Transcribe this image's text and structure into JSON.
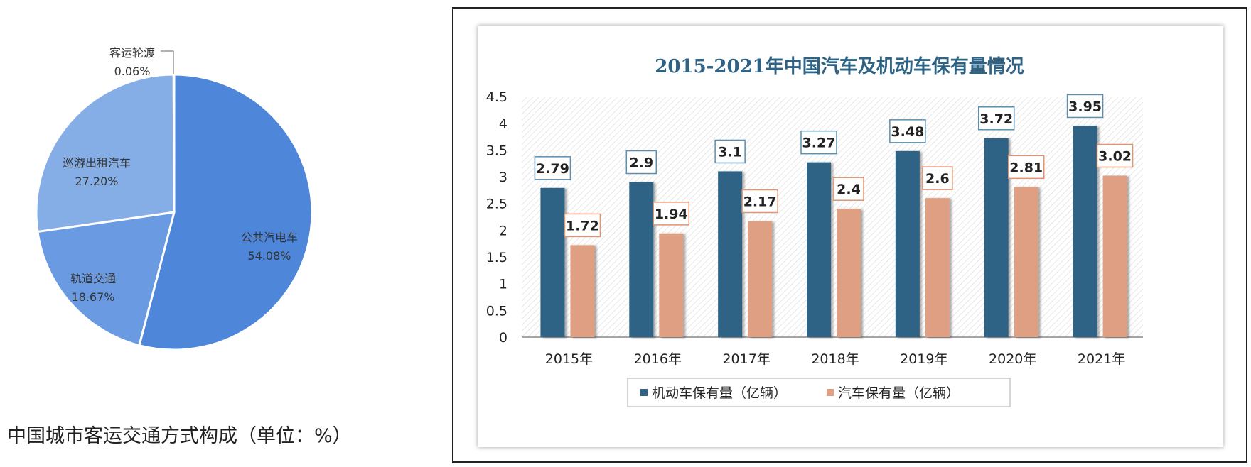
{
  "chart_data": [
    {
      "type": "pie",
      "caption": "中国城市客运交通方式构成（单位：%）",
      "slices": [
        {
          "label": "公共汽电车",
          "value": 54.08,
          "value_text": "54.08%"
        },
        {
          "label": "轨道交通",
          "value": 18.67,
          "value_text": "18.67%"
        },
        {
          "label": "巡游出租汽车",
          "value": 27.2,
          "value_text": "27.20%"
        },
        {
          "label": "客运轮渡",
          "value": 0.06,
          "value_text": "0.06%"
        }
      ],
      "colors": [
        "#4e86d9",
        "#6a9be2",
        "#86aee6",
        "#a4c2ec"
      ]
    },
    {
      "type": "bar",
      "title": "2015-2021年中国汽车及机动车保有量情况",
      "categories": [
        "2015年",
        "2016年",
        "2017年",
        "2018年",
        "2019年",
        "2020年",
        "2021年"
      ],
      "series": [
        {
          "name": "机动车保有量（亿辆）",
          "values": [
            2.79,
            2.9,
            3.1,
            3.27,
            3.48,
            3.72,
            3.95
          ],
          "labels": [
            "2.79",
            "2.9",
            "3.1",
            "3.27",
            "3.48",
            "3.72",
            "3.95"
          ],
          "color": "#2e6385"
        },
        {
          "name": "汽车保有量（亿辆）",
          "values": [
            1.72,
            1.94,
            2.17,
            2.4,
            2.6,
            2.81,
            3.02
          ],
          "labels": [
            "1.72",
            "1.94",
            "2.17",
            "2.4",
            "2.6",
            "2.81",
            "3.02"
          ],
          "color": "#df9f83"
        }
      ],
      "ylim": [
        0,
        4.5
      ],
      "yticks": [
        "0",
        "0.5",
        "1",
        "1.5",
        "2",
        "2.5",
        "3",
        "3.5",
        "4",
        "4.5"
      ],
      "grid": false,
      "legend": "bottom"
    }
  ]
}
